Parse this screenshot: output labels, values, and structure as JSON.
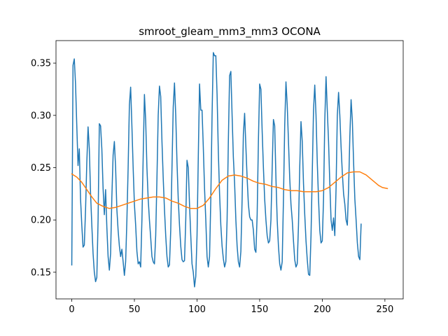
{
  "chart_data": {
    "type": "line",
    "title": "smroot_gleam_mm3_mm3 OCONA",
    "xlabel": "",
    "ylabel": "",
    "xlim": [
      -12.6,
      264.6
    ],
    "ylim": [
      0.1245,
      0.3715
    ],
    "xticks": [
      0,
      50,
      100,
      150,
      200,
      250
    ],
    "xtick_labels": [
      "0",
      "50",
      "100",
      "150",
      "200",
      "250"
    ],
    "yticks": [
      0.15,
      0.2,
      0.25,
      0.3,
      0.35
    ],
    "ytick_labels": [
      "0.15",
      "0.20",
      "0.25",
      "0.30",
      "0.35"
    ],
    "grid": false,
    "legend": "none",
    "series": [
      {
        "color": "#1f77b4",
        "points": [
          [
            0,
            0.157
          ],
          [
            1,
            0.348
          ],
          [
            2,
            0.354
          ],
          [
            3,
            0.33
          ],
          [
            4,
            0.29
          ],
          [
            5,
            0.252
          ],
          [
            6,
            0.268
          ],
          [
            7,
            0.22
          ],
          [
            8,
            0.195
          ],
          [
            9,
            0.174
          ],
          [
            10,
            0.176
          ],
          [
            11,
            0.21
          ],
          [
            12,
            0.255
          ],
          [
            13,
            0.289
          ],
          [
            14,
            0.268
          ],
          [
            15,
            0.225
          ],
          [
            16,
            0.195
          ],
          [
            17,
            0.168
          ],
          [
            18,
            0.15
          ],
          [
            19,
            0.141
          ],
          [
            20,
            0.145
          ],
          [
            21,
            0.2
          ],
          [
            22,
            0.292
          ],
          [
            23,
            0.29
          ],
          [
            24,
            0.268
          ],
          [
            25,
            0.23
          ],
          [
            26,
            0.205
          ],
          [
            27,
            0.229
          ],
          [
            28,
            0.193
          ],
          [
            29,
            0.165
          ],
          [
            30,
            0.152
          ],
          [
            31,
            0.168
          ],
          [
            32,
            0.222
          ],
          [
            33,
            0.262
          ],
          [
            34,
            0.275
          ],
          [
            35,
            0.25
          ],
          [
            36,
            0.21
          ],
          [
            37,
            0.19
          ],
          [
            38,
            0.175
          ],
          [
            39,
            0.165
          ],
          [
            40,
            0.172
          ],
          [
            41,
            0.16
          ],
          [
            42,
            0.147
          ],
          [
            43,
            0.16
          ],
          [
            44,
            0.2
          ],
          [
            45,
            0.25
          ],
          [
            46,
            0.31
          ],
          [
            47,
            0.327
          ],
          [
            48,
            0.29
          ],
          [
            49,
            0.25
          ],
          [
            50,
            0.215
          ],
          [
            51,
            0.195
          ],
          [
            52,
            0.17
          ],
          [
            53,
            0.158
          ],
          [
            54,
            0.16
          ],
          [
            55,
            0.155
          ],
          [
            56,
            0.2
          ],
          [
            57,
            0.26
          ],
          [
            58,
            0.32
          ],
          [
            59,
            0.295
          ],
          [
            60,
            0.25
          ],
          [
            61,
            0.22
          ],
          [
            62,
            0.2
          ],
          [
            63,
            0.183
          ],
          [
            64,
            0.165
          ],
          [
            65,
            0.16
          ],
          [
            66,
            0.158
          ],
          [
            67,
            0.185
          ],
          [
            68,
            0.24
          ],
          [
            69,
            0.3
          ],
          [
            70,
            0.328
          ],
          [
            71,
            0.318
          ],
          [
            72,
            0.275
          ],
          [
            73,
            0.24
          ],
          [
            74,
            0.21
          ],
          [
            75,
            0.185
          ],
          [
            76,
            0.165
          ],
          [
            77,
            0.155
          ],
          [
            78,
            0.157
          ],
          [
            79,
            0.19
          ],
          [
            80,
            0.25
          ],
          [
            81,
            0.308
          ],
          [
            82,
            0.331
          ],
          [
            83,
            0.3
          ],
          [
            84,
            0.255
          ],
          [
            85,
            0.22
          ],
          [
            86,
            0.195
          ],
          [
            87,
            0.175
          ],
          [
            88,
            0.162
          ],
          [
            89,
            0.16
          ],
          [
            90,
            0.161
          ],
          [
            91,
            0.2
          ],
          [
            92,
            0.257
          ],
          [
            93,
            0.25
          ],
          [
            94,
            0.215
          ],
          [
            95,
            0.185
          ],
          [
            96,
            0.158
          ],
          [
            97,
            0.15
          ],
          [
            98,
            0.136
          ],
          [
            99,
            0.146
          ],
          [
            100,
            0.185
          ],
          [
            101,
            0.26
          ],
          [
            102,
            0.33
          ],
          [
            103,
            0.305
          ],
          [
            104,
            0.305
          ],
          [
            105,
            0.27
          ],
          [
            106,
            0.23
          ],
          [
            107,
            0.2
          ],
          [
            108,
            0.165
          ],
          [
            109,
            0.155
          ],
          [
            110,
            0.165
          ],
          [
            111,
            0.22
          ],
          [
            112,
            0.3
          ],
          [
            113,
            0.36
          ],
          [
            114,
            0.357
          ],
          [
            115,
            0.357
          ],
          [
            116,
            0.32
          ],
          [
            117,
            0.265
          ],
          [
            118,
            0.225
          ],
          [
            119,
            0.195
          ],
          [
            120,
            0.175
          ],
          [
            121,
            0.163
          ],
          [
            122,
            0.155
          ],
          [
            123,
            0.16
          ],
          [
            124,
            0.2
          ],
          [
            125,
            0.275
          ],
          [
            126,
            0.338
          ],
          [
            127,
            0.342
          ],
          [
            128,
            0.3
          ],
          [
            129,
            0.26
          ],
          [
            130,
            0.235
          ],
          [
            131,
            0.2
          ],
          [
            132,
            0.175
          ],
          [
            133,
            0.16
          ],
          [
            134,
            0.155
          ],
          [
            135,
            0.17
          ],
          [
            136,
            0.22
          ],
          [
            137,
            0.282
          ],
          [
            138,
            0.302
          ],
          [
            139,
            0.27
          ],
          [
            140,
            0.24
          ],
          [
            141,
            0.215
          ],
          [
            142,
            0.203
          ],
          [
            143,
            0.2
          ],
          [
            144,
            0.2
          ],
          [
            145,
            0.19
          ],
          [
            146,
            0.172
          ],
          [
            147,
            0.169
          ],
          [
            148,
            0.205
          ],
          [
            149,
            0.275
          ],
          [
            150,
            0.33
          ],
          [
            151,
            0.325
          ],
          [
            152,
            0.285
          ],
          [
            153,
            0.25
          ],
          [
            154,
            0.22
          ],
          [
            155,
            0.2
          ],
          [
            156,
            0.185
          ],
          [
            157,
            0.178
          ],
          [
            158,
            0.18
          ],
          [
            159,
            0.2
          ],
          [
            160,
            0.25
          ],
          [
            161,
            0.296
          ],
          [
            162,
            0.29
          ],
          [
            163,
            0.24
          ],
          [
            164,
            0.2
          ],
          [
            165,
            0.175
          ],
          [
            166,
            0.158
          ],
          [
            167,
            0.152
          ],
          [
            168,
            0.16
          ],
          [
            169,
            0.22
          ],
          [
            170,
            0.29
          ],
          [
            171,
            0.332
          ],
          [
            172,
            0.31
          ],
          [
            173,
            0.275
          ],
          [
            174,
            0.24
          ],
          [
            175,
            0.215
          ],
          [
            176,
            0.2
          ],
          [
            177,
            0.18
          ],
          [
            178,
            0.162
          ],
          [
            179,
            0.155
          ],
          [
            180,
            0.158
          ],
          [
            181,
            0.195
          ],
          [
            182,
            0.25
          ],
          [
            183,
            0.294
          ],
          [
            184,
            0.275
          ],
          [
            185,
            0.235
          ],
          [
            186,
            0.205
          ],
          [
            187,
            0.18
          ],
          [
            188,
            0.162
          ],
          [
            189,
            0.148
          ],
          [
            190,
            0.147
          ],
          [
            191,
            0.185
          ],
          [
            192,
            0.245
          ],
          [
            193,
            0.305
          ],
          [
            194,
            0.329
          ],
          [
            195,
            0.3
          ],
          [
            196,
            0.255
          ],
          [
            197,
            0.22
          ],
          [
            198,
            0.19
          ],
          [
            199,
            0.178
          ],
          [
            200,
            0.18
          ],
          [
            201,
            0.22
          ],
          [
            202,
            0.295
          ],
          [
            203,
            0.337
          ],
          [
            204,
            0.305
          ],
          [
            205,
            0.275
          ],
          [
            206,
            0.235
          ],
          [
            207,
            0.2
          ],
          [
            208,
            0.19
          ],
          [
            209,
            0.202
          ],
          [
            210,
            0.185
          ],
          [
            211,
            0.23
          ],
          [
            212,
            0.3
          ],
          [
            213,
            0.322
          ],
          [
            214,
            0.3
          ],
          [
            215,
            0.27
          ],
          [
            216,
            0.245
          ],
          [
            217,
            0.225
          ],
          [
            218,
            0.215
          ],
          [
            219,
            0.2
          ],
          [
            220,
            0.195
          ],
          [
            221,
            0.23
          ],
          [
            222,
            0.28
          ],
          [
            223,
            0.315
          ],
          [
            224,
            0.295
          ],
          [
            225,
            0.255
          ],
          [
            226,
            0.22
          ],
          [
            227,
            0.2
          ],
          [
            228,
            0.178
          ],
          [
            229,
            0.165
          ],
          [
            230,
            0.162
          ],
          [
            231,
            0.196
          ]
        ]
      },
      {
        "color": "#ff7f0e",
        "points": [
          [
            0,
            0.244
          ],
          [
            4,
            0.241
          ],
          [
            8,
            0.236
          ],
          [
            12,
            0.229
          ],
          [
            16,
            0.222
          ],
          [
            20,
            0.216
          ],
          [
            25,
            0.213
          ],
          [
            30,
            0.211
          ],
          [
            35,
            0.212
          ],
          [
            40,
            0.214
          ],
          [
            45,
            0.216
          ],
          [
            50,
            0.218
          ],
          [
            55,
            0.22
          ],
          [
            60,
            0.221
          ],
          [
            65,
            0.222
          ],
          [
            70,
            0.222
          ],
          [
            75,
            0.221
          ],
          [
            80,
            0.218
          ],
          [
            85,
            0.216
          ],
          [
            90,
            0.213
          ],
          [
            95,
            0.211
          ],
          [
            100,
            0.211
          ],
          [
            105,
            0.214
          ],
          [
            110,
            0.221
          ],
          [
            115,
            0.23
          ],
          [
            120,
            0.238
          ],
          [
            125,
            0.242
          ],
          [
            130,
            0.243
          ],
          [
            135,
            0.242
          ],
          [
            140,
            0.24
          ],
          [
            145,
            0.237
          ],
          [
            150,
            0.235
          ],
          [
            155,
            0.234
          ],
          [
            160,
            0.232
          ],
          [
            165,
            0.231
          ],
          [
            170,
            0.229
          ],
          [
            175,
            0.228
          ],
          [
            180,
            0.228
          ],
          [
            185,
            0.227
          ],
          [
            190,
            0.227
          ],
          [
            195,
            0.227
          ],
          [
            200,
            0.228
          ],
          [
            205,
            0.231
          ],
          [
            210,
            0.236
          ],
          [
            215,
            0.241
          ],
          [
            220,
            0.245
          ],
          [
            225,
            0.246
          ],
          [
            230,
            0.246
          ],
          [
            235,
            0.243
          ],
          [
            240,
            0.238
          ],
          [
            245,
            0.233
          ],
          [
            248,
            0.231
          ],
          [
            252,
            0.23
          ]
        ]
      }
    ]
  }
}
